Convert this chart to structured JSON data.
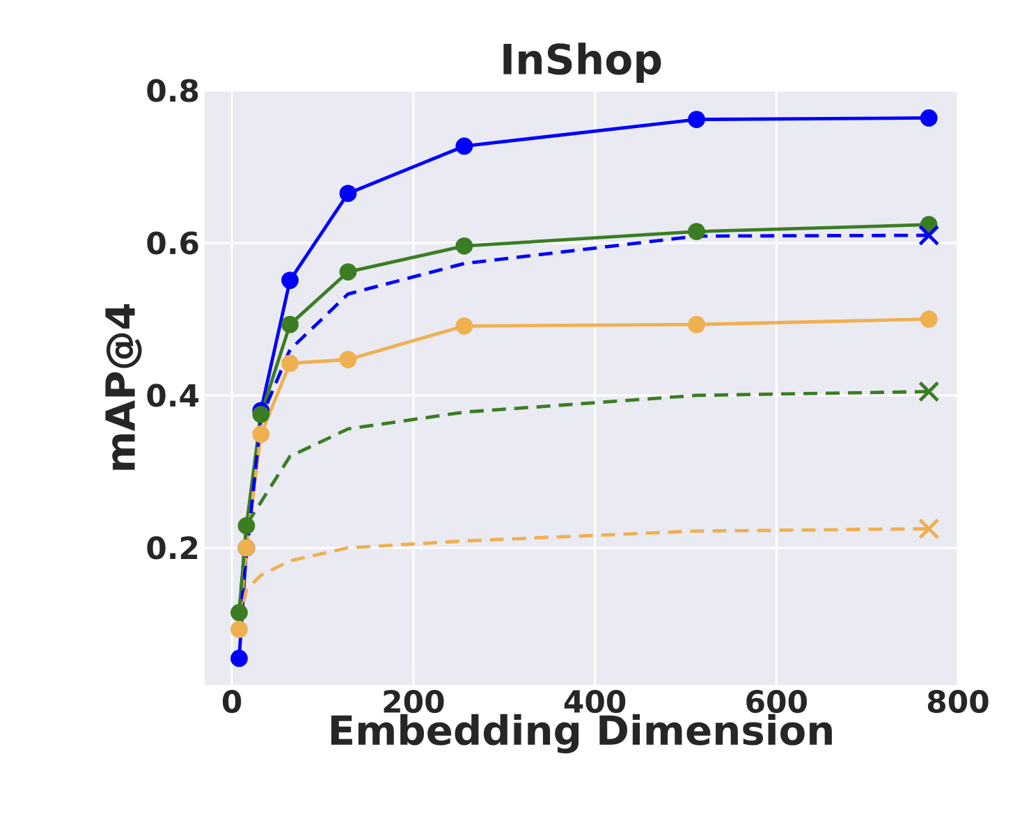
{
  "chart_data": {
    "type": "line",
    "title": "InShop",
    "xlabel": "Embedding Dimension",
    "ylabel": "mAP@4",
    "xlim": [
      -30,
      800
    ],
    "ylim": [
      0.02,
      0.8
    ],
    "xticks": [
      0,
      200,
      400,
      600,
      800
    ],
    "yticks": [
      0.2,
      0.4,
      0.6,
      0.8
    ],
    "grid": true,
    "series": [
      {
        "color": "#0000ff",
        "marker": "circle",
        "line_style": "solid",
        "x": [
          8,
          16,
          32,
          64,
          128,
          256,
          512,
          768
        ],
        "values": [
          0.055,
          0.2,
          0.38,
          0.551,
          0.665,
          0.727,
          0.762,
          0.764
        ]
      },
      {
        "color": "#3b7d23",
        "marker": "circle",
        "line_style": "solid",
        "x": [
          8,
          16,
          32,
          64,
          128,
          256,
          512,
          768
        ],
        "values": [
          0.115,
          0.229,
          0.375,
          0.493,
          0.562,
          0.596,
          0.615,
          0.624
        ]
      },
      {
        "color": "#efb050",
        "marker": "circle",
        "line_style": "solid",
        "x": [
          8,
          16,
          32,
          64,
          128,
          256,
          512,
          768
        ],
        "values": [
          0.093,
          0.2,
          0.349,
          0.442,
          0.447,
          0.491,
          0.493,
          0.5
        ]
      },
      {
        "color": "#0000ff",
        "marker": "none",
        "line_style": "dashed",
        "x": [
          8,
          16,
          32,
          64,
          128,
          256,
          512,
          768
        ],
        "values": [
          0.1,
          0.19,
          0.37,
          0.46,
          0.533,
          0.573,
          0.609,
          0.61
        ]
      },
      {
        "color": "#3b7d23",
        "marker": "none",
        "line_style": "dashed",
        "x": [
          8,
          16,
          32,
          64,
          128,
          256,
          512,
          768
        ],
        "values": [
          0.115,
          0.23,
          0.26,
          0.32,
          0.356,
          0.378,
          0.4,
          0.405
        ]
      },
      {
        "color": "#efb050",
        "marker": "none",
        "line_style": "dashed",
        "x": [
          8,
          16,
          32,
          64,
          128,
          256,
          512,
          768
        ],
        "values": [
          0.1,
          0.145,
          0.164,
          0.183,
          0.2,
          0.209,
          0.222,
          0.225
        ]
      },
      {
        "type": "scatter",
        "color": "#0000ff",
        "marker": "cross",
        "x": [
          768
        ],
        "values": [
          0.61
        ]
      },
      {
        "type": "scatter",
        "color": "#3b7d23",
        "marker": "cross",
        "x": [
          768
        ],
        "values": [
          0.405
        ]
      },
      {
        "type": "scatter",
        "color": "#efb050",
        "marker": "cross",
        "x": [
          768
        ],
        "values": [
          0.225
        ]
      }
    ]
  }
}
